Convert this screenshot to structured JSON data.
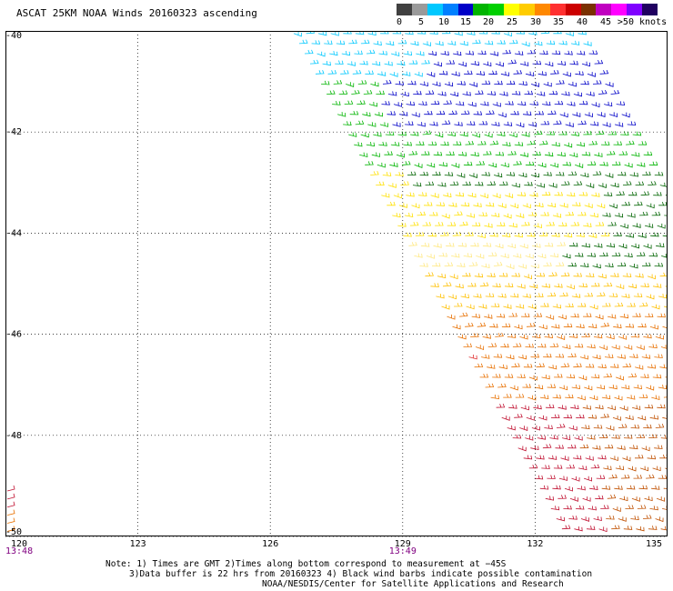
{
  "title": "ASCAT 25KM NOAA Winds 20160323 ascending",
  "legend": {
    "labels": [
      "0",
      "5",
      "10",
      "15",
      "20",
      "25",
      "30",
      "35",
      "40",
      "45",
      ">50 knots"
    ],
    "colors": [
      "#404040",
      "#9a9a9a",
      "#00c8ff",
      "#0080ff",
      "#0000c8",
      "#00b400",
      "#00d000",
      "#ffff00",
      "#ffcc00",
      "#ff8800",
      "#ff3030",
      "#cc0000",
      "#7a3000",
      "#c000c0",
      "#ff00ff",
      "#8000ff",
      "#200060"
    ]
  },
  "map": {
    "lon_ticks": [
      "120",
      "123",
      "126",
      "129",
      "132",
      "135"
    ],
    "lat_ticks": [
      "-40",
      "-42",
      "-44",
      "-46",
      "-48",
      "-50"
    ],
    "lon_range": [
      120,
      135
    ],
    "lat_range": [
      -50,
      -40
    ],
    "grid": "dotted",
    "time_labels": [
      {
        "text": "13:48",
        "lon": 120
      },
      {
        "text": "13:49",
        "lon": 129
      }
    ],
    "swath_colors": {
      "cyan": "#00c8ff",
      "blue": "#0000c8",
      "green": "#00b400",
      "darkgreen": "#006400",
      "yellow": "#ffe000",
      "lightyellow": "#ffe880",
      "gold": "#ffc000",
      "orange": "#e87000",
      "brown": "#c05000",
      "red": "#e03030",
      "crimson": "#c01030"
    }
  },
  "notes": {
    "line1": "Note: 1) Times are GMT 2)Times along bottom correspond to measurement at −45S",
    "line2": "3)Data buffer is 22 hrs from 20160323 4) Black wind barbs indicate possible contamination",
    "line3": "NOAA/NESDIS/Center for Satellite Applications and Research"
  }
}
